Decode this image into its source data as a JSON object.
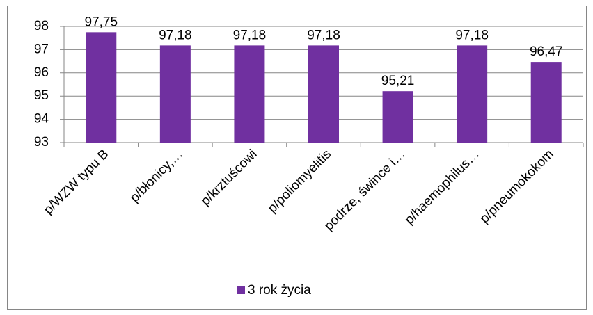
{
  "chart_data": {
    "type": "bar",
    "categories": [
      "p/WZW typu B",
      "p/błonicy,…",
      "p/krztuścowi",
      "p/poliomyelitis",
      "podrze, śwince i…",
      "p/haemophilus…",
      "p/pneumokokom"
    ],
    "series": [
      {
        "name": "3 rok życia",
        "color": "#7030a0",
        "values": [
          97.75,
          97.18,
          97.18,
          97.18,
          95.21,
          97.18,
          96.47
        ],
        "value_labels": [
          "97,75",
          "97,18",
          "97,18",
          "97,18",
          "95,21",
          "97,18",
          "96,47"
        ]
      }
    ],
    "ylim": [
      93,
      98
    ],
    "yticks": [
      93,
      94,
      95,
      96,
      97,
      98
    ],
    "grid": true,
    "legend": "bottom"
  }
}
